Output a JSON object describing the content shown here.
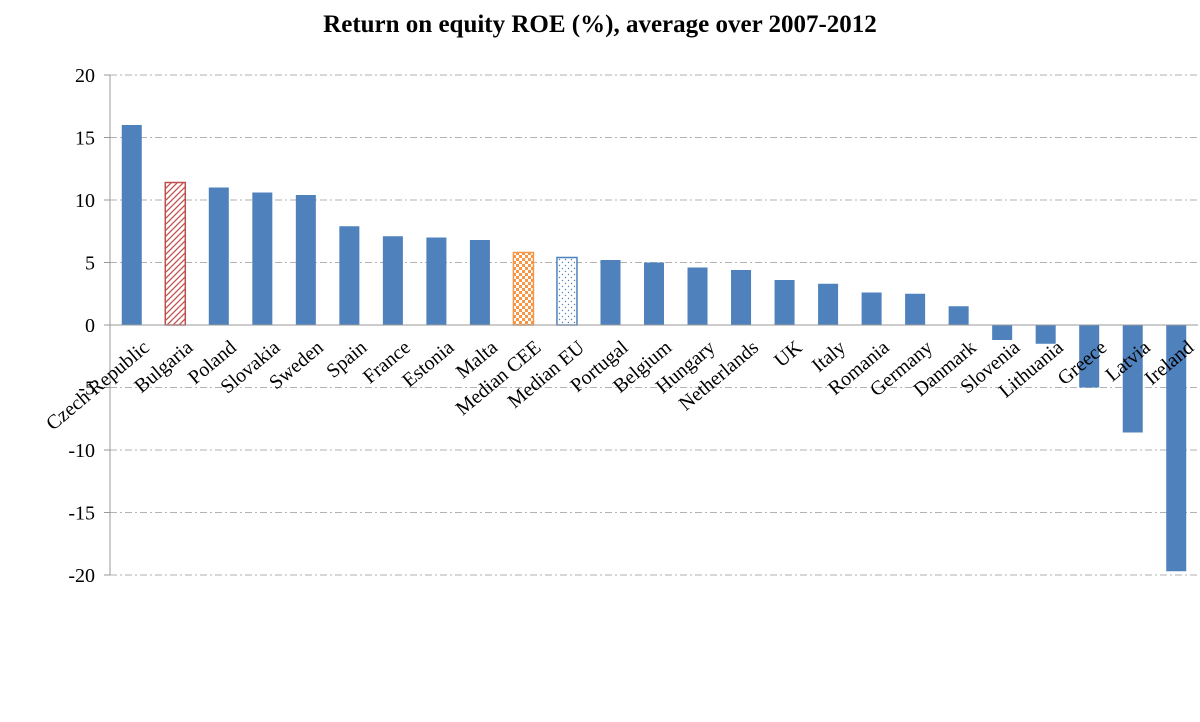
{
  "chart_data": {
    "type": "bar",
    "title": "Return on equity ROE (%), average over 2007-2012",
    "categories": [
      "Czech Republic",
      "Bulgaria",
      "Poland",
      "Slovakia",
      "Sweden",
      "Spain",
      "France",
      "Estonia",
      "Malta",
      "Median CEE",
      "Median EU",
      "Portugal",
      "Belgium",
      "Hungary",
      "Netherlands",
      "UK",
      "Italy",
      "Romania",
      "Germany",
      "Danmark",
      "Slovenia",
      "Lithuania",
      "Greece",
      "Latvia",
      "Ireland"
    ],
    "values": [
      16.0,
      11.4,
      11.0,
      10.6,
      10.4,
      7.9,
      7.1,
      7.0,
      6.8,
      5.8,
      5.4,
      5.2,
      5.0,
      4.6,
      4.4,
      3.6,
      3.3,
      2.6,
      2.5,
      1.5,
      -1.2,
      -1.5,
      -5.0,
      -8.6,
      -19.7
    ],
    "colors": [
      "#4f81bd",
      "#c0504d",
      "#4f81bd",
      "#4f81bd",
      "#4f81bd",
      "#4f81bd",
      "#4f81bd",
      "#4f81bd",
      "#4f81bd",
      "#f79646",
      "#4f81bd",
      "#4f81bd",
      "#4f81bd",
      "#4f81bd",
      "#4f81bd",
      "#4f81bd",
      "#4f81bd",
      "#4f81bd",
      "#4f81bd",
      "#4f81bd",
      "#4f81bd",
      "#4f81bd",
      "#4f81bd",
      "#4f81bd",
      "#4f81bd"
    ],
    "patterns": [
      null,
      "hatch",
      null,
      null,
      null,
      null,
      null,
      null,
      null,
      "check",
      "dots",
      null,
      null,
      null,
      null,
      null,
      null,
      null,
      null,
      null,
      null,
      null,
      null,
      null,
      null
    ],
    "ylim": [
      -20,
      20
    ],
    "yticks": [
      -20,
      -15,
      -10,
      -5,
      0,
      5,
      10,
      15,
      20
    ],
    "grid": true
  }
}
